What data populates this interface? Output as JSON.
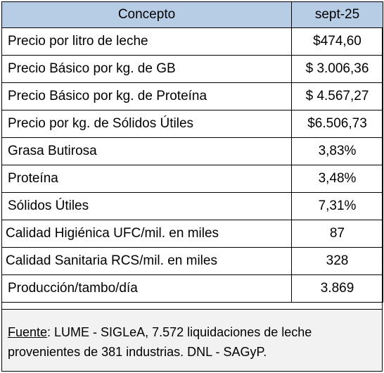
{
  "table": {
    "headers": [
      "Concepto",
      "sept-25"
    ],
    "rows": [
      {
        "concept": "Precio por litro de leche",
        "value": "$474,60"
      },
      {
        "concept": "Precio Básico por kg. de GB",
        "value": "$ 3.006,36"
      },
      {
        "concept": "Precio Básico por kg. de Proteína",
        "value": "$ 4.567,27"
      },
      {
        "concept": "Precio por kg. de Sólidos Útiles",
        "value": "$6.506,73"
      },
      {
        "concept": "Grasa Butirosa",
        "value": "3,83%"
      },
      {
        "concept": "Proteína",
        "value": "3,48%"
      },
      {
        "concept": "Sólidos Útiles",
        "value": "7,31%"
      },
      {
        "concept": "Calidad Higiénica UFC/mil. en miles",
        "value": "87"
      },
      {
        "concept": "Calidad Sanitaria RCS/mil. en miles",
        "value": "328"
      },
      {
        "concept": "Producción/tambo/día",
        "value": "3.869"
      }
    ]
  },
  "footer": {
    "source_label": "Fuente",
    "source_text": ":  LUME - SIGLeA, 7.572 liquidaciones de leche provenientes de 381 industrias. DNL - SAGyP."
  }
}
